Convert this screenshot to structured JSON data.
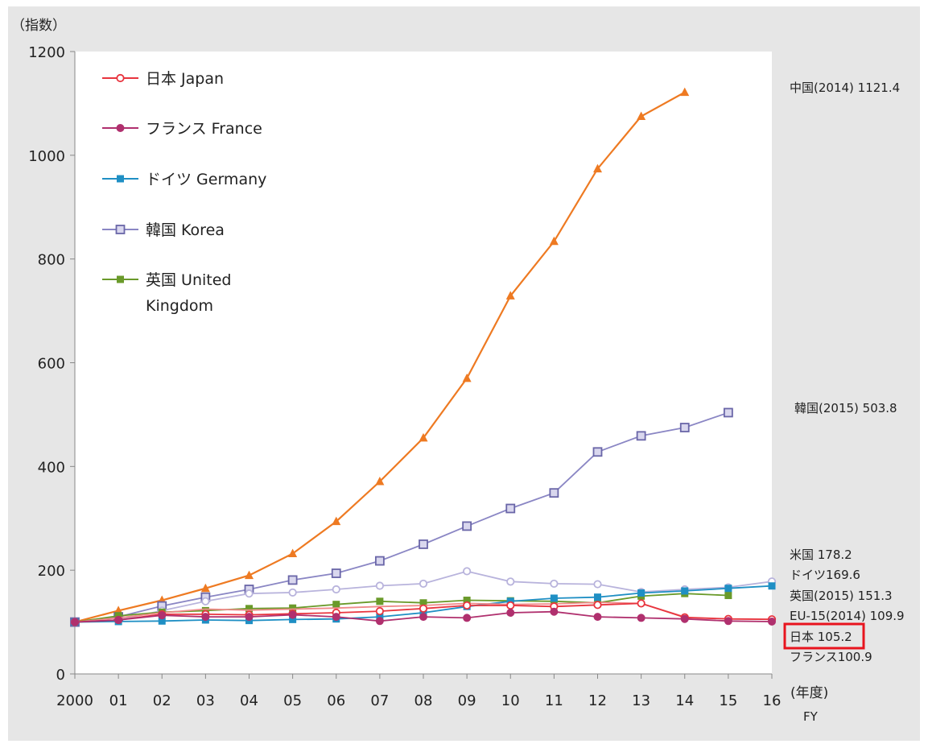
{
  "chart_data": {
    "type": "line",
    "y_unit_label": "（指数）",
    "x_unit_label": "(年度)",
    "x_unit_label_en": "FY",
    "ylim": [
      0,
      1200
    ],
    "y_ticks": [
      "0",
      "200",
      "400",
      "600",
      "800",
      "1000",
      "1200"
    ],
    "categories": [
      "2000",
      "01",
      "02",
      "03",
      "04",
      "05",
      "06",
      "07",
      "08",
      "09",
      "10",
      "11",
      "12",
      "13",
      "14",
      "15",
      "16"
    ],
    "legend_position": "top-left",
    "legend": [
      {
        "label": "日本  Japan",
        "color": "#e8343e",
        "marker": "circle-open"
      },
      {
        "label": "フランス France",
        "color": "#b0306e",
        "marker": "circle-filled"
      },
      {
        "label": "ドイツ Germany",
        "color": "#1f8fc4",
        "marker": "square-filled"
      },
      {
        "label": "韓国 Korea",
        "color": "#8a86c4",
        "marker": "square-open"
      },
      {
        "label": "英国 United",
        "label_line2": "Kingdom",
        "color": "#6a9a2a",
        "marker": "square-filled"
      }
    ],
    "series": [
      {
        "key": "china",
        "color": "#ee7a22",
        "marker": "triangle",
        "values": [
          100,
          122,
          142,
          165,
          190,
          232,
          294,
          371,
          455,
          570,
          729,
          834,
          974,
          1075,
          1121.4,
          null,
          null
        ]
      },
      {
        "key": "korea",
        "color": "#8a86c4",
        "marker": "square-open",
        "values": [
          100,
          110,
          131,
          148,
          163,
          181,
          194,
          218,
          250,
          285,
          319,
          349,
          428,
          459,
          475,
          503.8,
          null
        ]
      },
      {
        "key": "usa",
        "color": "#b8b3dc",
        "marker": "circle-open",
        "values": [
          100,
          104,
          122,
          140,
          155,
          157,
          163,
          170,
          174,
          198,
          178,
          174,
          173,
          158,
          163,
          167,
          178.2
        ]
      },
      {
        "key": "uk",
        "color": "#6a9a2a",
        "marker": "square-filled",
        "values": [
          100,
          112,
          119,
          122,
          126,
          127,
          134,
          140,
          137,
          142,
          141,
          140,
          137,
          150,
          155,
          151.3,
          null
        ]
      },
      {
        "key": "germany",
        "color": "#1f8fc4",
        "marker": "square-filled",
        "values": [
          100,
          101,
          102,
          104,
          103,
          105,
          106,
          110,
          118,
          130,
          140,
          146,
          148,
          156,
          160,
          165,
          169.6
        ]
      },
      {
        "key": "eu15",
        "color": "#f08a8a",
        "marker": "none",
        "values": [
          100,
          108,
          118,
          125,
          123,
          125,
          127,
          130,
          132,
          136,
          134,
          135,
          138,
          136,
          109.9,
          null,
          null
        ]
      },
      {
        "key": "japan",
        "color": "#e8343e",
        "marker": "circle-open",
        "values": [
          100,
          104,
          115,
          115,
          114,
          116,
          118,
          121,
          126,
          132,
          132,
          130,
          133,
          136,
          109,
          106,
          105.2
        ]
      },
      {
        "key": "france",
        "color": "#b0306e",
        "marker": "circle-filled",
        "values": [
          100,
          104,
          113,
          110,
          110,
          114,
          110,
          102,
          110,
          108,
          118,
          120,
          110,
          108,
          106,
          102,
          100.9
        ]
      }
    ],
    "end_labels": [
      {
        "key": "china",
        "text": "中国(2014)  1121.4"
      },
      {
        "key": "korea",
        "text": "韓国(2015) 503.8"
      },
      {
        "key": "usa",
        "text": "米国 178.2"
      },
      {
        "key": "germany",
        "text": "ドイツ169.6"
      },
      {
        "key": "uk",
        "text": "英国(2015) 151.3"
      },
      {
        "key": "eu15",
        "text": "EU-15(2014) 109.9"
      },
      {
        "key": "japan",
        "text": "日本 105.2",
        "highlight_color": "#e8141e"
      },
      {
        "key": "france",
        "text": "フランス100.9"
      }
    ]
  }
}
